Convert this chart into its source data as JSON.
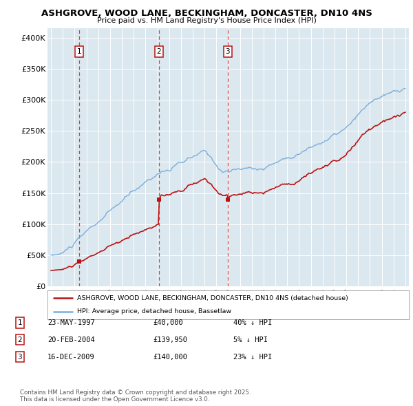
{
  "title": "ASHGROVE, WOOD LANE, BECKINGHAM, DONCASTER, DN10 4NS",
  "subtitle": "Price paid vs. HM Land Registry's House Price Index (HPI)",
  "ylabel_ticks": [
    "£0",
    "£50K",
    "£100K",
    "£150K",
    "£200K",
    "£250K",
    "£300K",
    "£350K",
    "£400K"
  ],
  "ytick_values": [
    0,
    50000,
    100000,
    150000,
    200000,
    250000,
    300000,
    350000,
    400000
  ],
  "ylim": [
    0,
    415000
  ],
  "xlim_start": 1994.7,
  "xlim_end": 2025.3,
  "hpi_color": "#7aaedb",
  "price_color": "#bb1111",
  "dashed_color": "#cc3333",
  "sale_dates": [
    1997.39,
    2004.13,
    2009.96
  ],
  "sale_prices": [
    40000,
    139950,
    140000
  ],
  "sale_labels": [
    "1",
    "2",
    "3"
  ],
  "legend_line1": "ASHGROVE, WOOD LANE, BECKINGHAM, DONCASTER, DN10 4NS (detached house)",
  "legend_line2": "HPI: Average price, detached house, Bassetlaw",
  "table_entries": [
    {
      "num": "1",
      "date": "23-MAY-1997",
      "price": "£40,000",
      "note": "40% ↓ HPI"
    },
    {
      "num": "2",
      "date": "20-FEB-2004",
      "price": "£139,950",
      "note": "5% ↓ HPI"
    },
    {
      "num": "3",
      "date": "16-DEC-2009",
      "price": "£140,000",
      "note": "23% ↓ HPI"
    }
  ],
  "footnote": "Contains HM Land Registry data © Crown copyright and database right 2025.\nThis data is licensed under the Open Government Licence v3.0.",
  "plot_bg_color": "#dce8f0"
}
